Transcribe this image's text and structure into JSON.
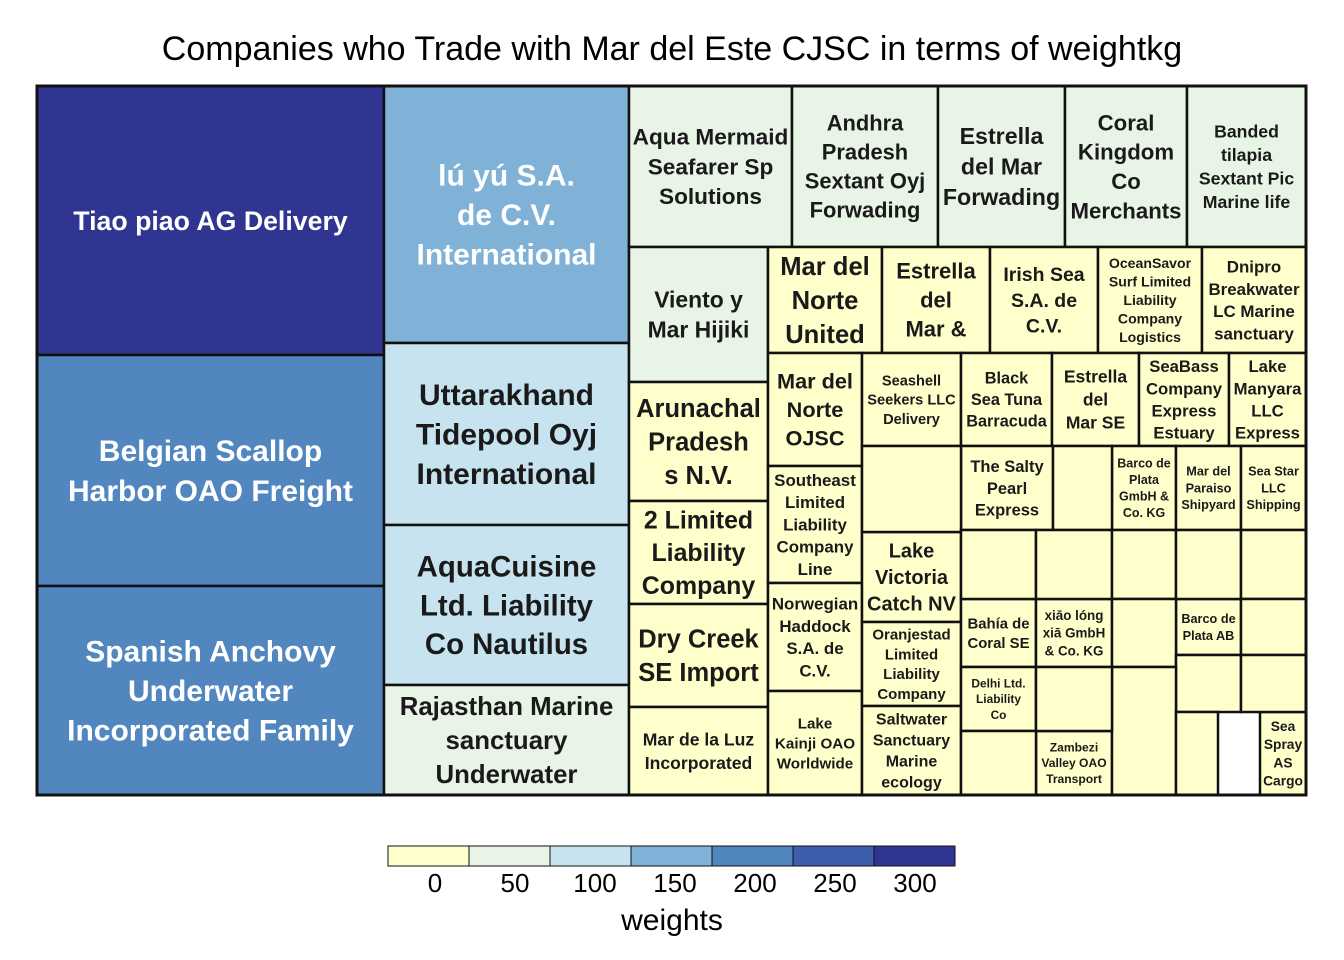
{
  "chart_data": {
    "type": "treemap",
    "title": "Companies who Trade with Mar del Este CJSC in terms of weightkg",
    "legend": {
      "title": "weights",
      "placement": "bottom",
      "ticks": [
        "0",
        "50",
        "100",
        "150",
        "200",
        "250",
        "300"
      ],
      "palette": [
        "#ffffcc",
        "#e8f4e6",
        "#c6e3ef",
        "#7fb2d6",
        "#5186bf",
        "#3d5eaa",
        "#2f3591"
      ]
    },
    "cells": [
      {
        "label": "Tiao piao  AG Delivery",
        "lines": [
          "Tiao piao  AG Delivery"
        ],
        "weight": 310
      },
      {
        "label": "Belgian Scallop Harbor OAO Freight",
        "lines": [
          "Belgian Scallop",
          "Harbor OAO Freight"
        ],
        "weight": 215
      },
      {
        "label": "Spanish Anchovy Underwater Incorporated Family",
        "lines": [
          "Spanish Anchovy",
          "Underwater",
          "Incorporated Family"
        ],
        "weight": 200
      },
      {
        "label": "lú yú S.A. de C.V. International",
        "lines": [
          "lú yú S.A.",
          "de C.V.",
          "International"
        ],
        "weight": 160
      },
      {
        "label": "Uttarakhand Tidepool Oyj International",
        "lines": [
          "Uttarakhand",
          "Tidepool Oyj",
          "International"
        ],
        "weight": 120
      },
      {
        "label": "AquaCuisine Ltd. Liability Co Nautilus",
        "lines": [
          "AquaCuisine",
          "Ltd. Liability",
          "Co Nautilus"
        ],
        "weight": 115
      },
      {
        "label": "Rajasthan Marine sanctuary Underwater",
        "lines": [
          "Rajasthan Marine",
          "sanctuary",
          "Underwater"
        ],
        "weight": 75
      },
      {
        "label": "Aqua Mermaid Seafarer Sp Solutions",
        "lines": [
          "Aqua Mermaid",
          "Seafarer Sp",
          "Solutions"
        ],
        "weight": 85
      },
      {
        "label": "Andhra Pradesh Sextant Oyj Forwading",
        "lines": [
          "Andhra",
          "Pradesh",
          "Sextant Oyj",
          "Forwading"
        ],
        "weight": 72
      },
      {
        "label": "Estrella del Mar Forwading",
        "lines": [
          "Estrella",
          "del Mar",
          "Forwading"
        ],
        "weight": 68
      },
      {
        "label": "Coral Kingdom Co Merchants",
        "lines": [
          "Coral",
          "Kingdom",
          "Co",
          "Merchants"
        ],
        "weight": 66
      },
      {
        "label": "Banded tilapia Sextant Pic Marine life",
        "lines": [
          "Banded",
          "tilapia",
          "Sextant Pic",
          "Marine life"
        ],
        "weight": 64
      },
      {
        "label": "Viento y Mar Hijiki",
        "lines": [
          "Viento y",
          "Mar Hijiki"
        ],
        "weight": 60
      },
      {
        "label": "Arunachal Pradesh s N.V.",
        "lines": [
          "Arunachal",
          "Pradesh",
          "s N.V."
        ],
        "weight": 45
      },
      {
        "label": "2 Limited Liability Company",
        "lines": [
          "2 Limited",
          "Liability",
          "Company"
        ],
        "weight": 42
      },
      {
        "label": "Dry Creek SE Import",
        "lines": [
          "Dry Creek",
          "SE Import"
        ],
        "weight": 38
      },
      {
        "label": "Mar de la Luz Incorporated",
        "lines": [
          "Mar de la Luz",
          "Incorporated"
        ],
        "weight": 36
      },
      {
        "label": "Mar del Norte United",
        "lines": [
          "Mar del",
          "Norte",
          "United"
        ],
        "weight": 34
      },
      {
        "label": "Estrella del Mar &",
        "lines": [
          "Estrella",
          "del",
          "Mar &"
        ],
        "weight": 33
      },
      {
        "label": "Irish Sea S.A. de C.V.",
        "lines": [
          "Irish Sea",
          "S.A. de",
          "C.V."
        ],
        "weight": 32
      },
      {
        "label": "OceanSavor Surf Limited Liability Company Logistics",
        "lines": [
          "OceanSavor",
          "Surf Limited",
          "Liability",
          "Company",
          "Logistics"
        ],
        "weight": 31
      },
      {
        "label": "Dnipro Breakwater LC Marine sanctuary",
        "lines": [
          "Dnipro",
          "Breakwater",
          "LC Marine",
          "sanctuary"
        ],
        "weight": 30
      },
      {
        "label": "Mar del Norte OJSC",
        "lines": [
          "Mar del",
          "Norte",
          "OJSC"
        ],
        "weight": 30
      },
      {
        "label": "Southeast Limited Liability Company Line",
        "lines": [
          "Southeast",
          "Limited",
          "Liability",
          "Company",
          "Line"
        ],
        "weight": 29
      },
      {
        "label": "Norwegian Haddock S.A. de C.V.",
        "lines": [
          "Norwegian",
          "Haddock",
          "S.A. de",
          "C.V."
        ],
        "weight": 28
      },
      {
        "label": "Lake Kainji OAO Worldwide",
        "lines": [
          "Lake",
          "Kainji OAO",
          "Worldwide"
        ],
        "weight": 27
      },
      {
        "label": "Seashell Seekers LLC Delivery",
        "lines": [
          "Seashell",
          "Seekers LLC",
          "Delivery"
        ],
        "weight": 24
      },
      {
        "label": "Black Sea Tuna Barracuda",
        "lines": [
          "Black",
          "Sea Tuna",
          "Barracuda"
        ],
        "weight": 24
      },
      {
        "label": "Estrella del Mar SE",
        "lines": [
          "Estrella",
          "del",
          "Mar SE"
        ],
        "weight": 24
      },
      {
        "label": "SeaBass Company Express Estuary",
        "lines": [
          "SeaBass",
          "Company",
          "Express",
          "Estuary"
        ],
        "weight": 23
      },
      {
        "label": "Lake Manyara LLC Express",
        "lines": [
          "Lake",
          "Manyara",
          "LLC",
          "Express"
        ],
        "weight": 22
      },
      {
        "label": "Lake Victoria Catch NV",
        "lines": [
          "Lake",
          "Victoria",
          "Catch NV"
        ],
        "weight": 22
      },
      {
        "label": "The Salty Pearl Express",
        "lines": [
          "The Salty",
          "Pearl",
          "Express"
        ],
        "weight": 21
      },
      {
        "label": "Barco de Plata GmbH & Co. KG",
        "lines": [
          "Barco de",
          "Plata",
          "GmbH &",
          "Co. KG"
        ],
        "weight": 20
      },
      {
        "label": "Mar del Paraiso Shipyard",
        "lines": [
          "Mar del",
          "Paraiso",
          "Shipyard"
        ],
        "weight": 20
      },
      {
        "label": "Sea Star LLC Shipping",
        "lines": [
          "Sea Star",
          "LLC",
          "Shipping"
        ],
        "weight": 19
      },
      {
        "label": "Oranjestad Limited Liability Company",
        "lines": [
          "Oranjestad",
          "Limited",
          "Liability",
          "Company"
        ],
        "weight": 19
      },
      {
        "label": "Saltwater Sanctuary Marine ecology",
        "lines": [
          "Saltwater",
          "Sanctuary",
          "Marine",
          "ecology"
        ],
        "weight": 19
      },
      {
        "label": "Bahía de Coral SE",
        "lines": [
          "Bahía de",
          "Coral SE"
        ],
        "weight": 18
      },
      {
        "label": "xiāo lóng xiā GmbH & Co. KG",
        "lines": [
          "xiāo lóng",
          "xiā GmbH",
          "& Co. KG"
        ],
        "weight": 18
      },
      {
        "label": "Barco de Plata AB",
        "lines": [
          "Barco de",
          "Plata AB"
        ],
        "weight": 17
      },
      {
        "label": "Delhi Ltd. Liability Co",
        "lines": [
          "Delhi Ltd.",
          "Liability",
          "Co"
        ],
        "weight": 16
      },
      {
        "label": "Zambezi Valley OAO Transport",
        "lines": [
          "Zambezi",
          "Valley OAO",
          "Transport"
        ],
        "weight": 15
      },
      {
        "label": "Sea Spray AS Cargo",
        "lines": [
          "Sea",
          "Spray",
          "AS",
          "Cargo"
        ],
        "weight": 14
      },
      {
        "label": "",
        "lines": [],
        "weight": 17
      },
      {
        "label": "",
        "lines": [],
        "weight": 16
      },
      {
        "label": "",
        "lines": [],
        "weight": 15
      },
      {
        "label": "",
        "lines": [],
        "weight": 15
      },
      {
        "label": "",
        "lines": [],
        "weight": 14
      },
      {
        "label": "",
        "lines": [],
        "weight": 14
      },
      {
        "label": "",
        "lines": [],
        "weight": 13
      },
      {
        "label": "",
        "lines": [],
        "weight": 13
      },
      {
        "label": "",
        "lines": [],
        "weight": 12
      },
      {
        "label": "",
        "lines": [],
        "weight": 12
      },
      {
        "label": "",
        "lines": [],
        "weight": 12
      },
      {
        "label": "",
        "lines": [],
        "weight": 11
      },
      {
        "label": "",
        "lines": [],
        "weight": 11
      },
      {
        "label": "",
        "lines": [],
        "weight": 10
      },
      {
        "label": "",
        "lines": [],
        "weight": 10
      }
    ]
  }
}
